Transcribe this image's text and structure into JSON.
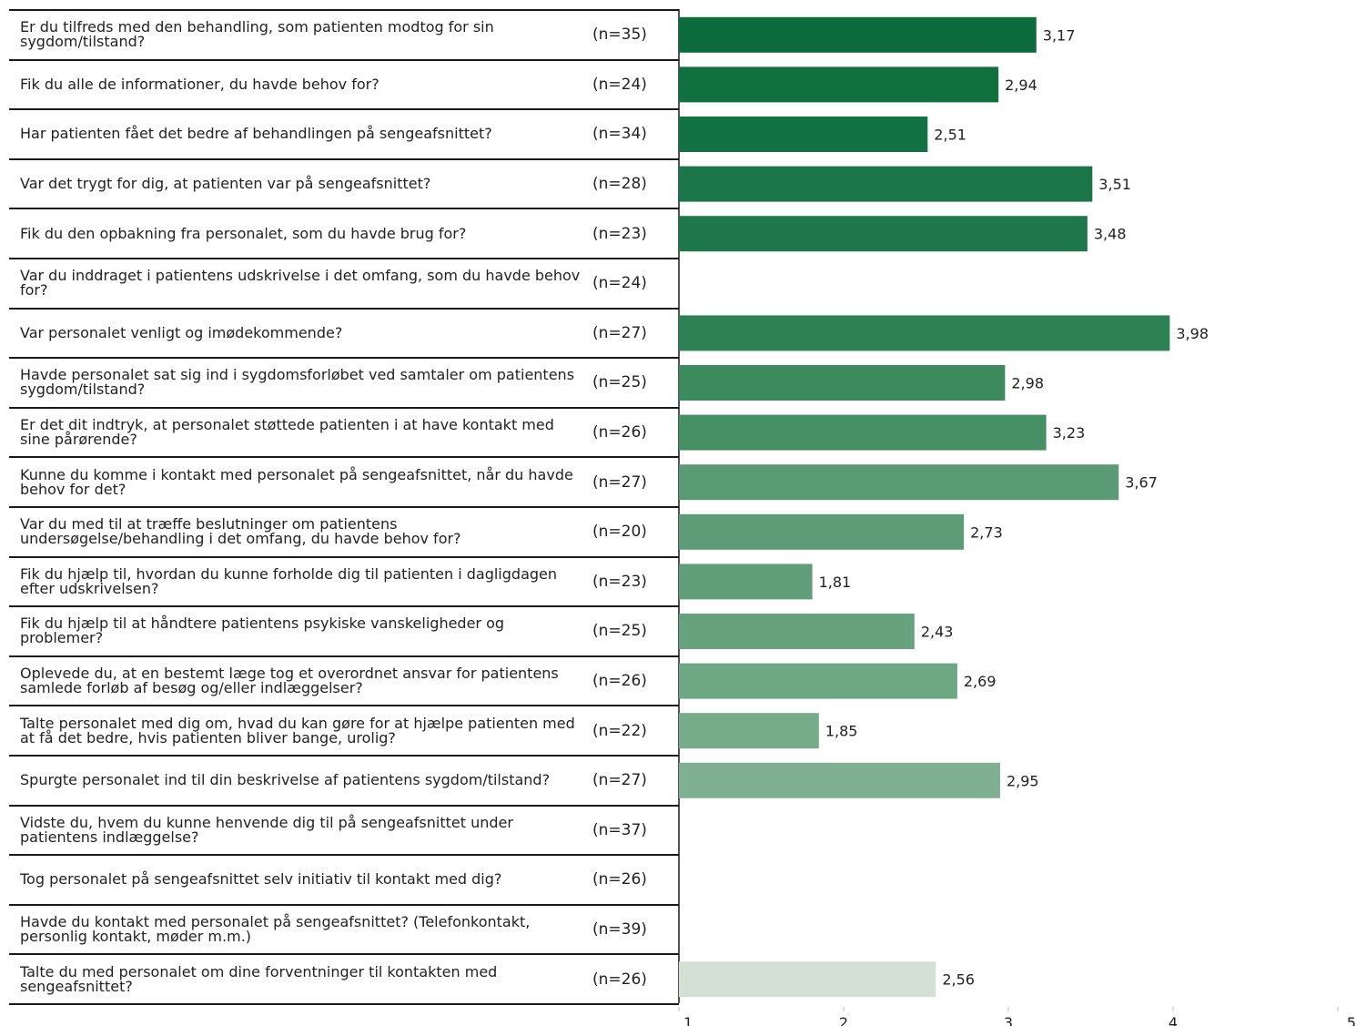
{
  "chart_data": {
    "type": "bar",
    "orientation": "horizontal",
    "xlim": [
      1,
      5
    ],
    "x_ticks": [
      "1",
      "2",
      "3",
      "4",
      "5"
    ],
    "grid": false,
    "rows": [
      {
        "question": "Er du tilfreds med den behandling, som patienten modtog for sin sygdom/tilstand?",
        "n": "(n=35)",
        "value": 3.17,
        "label": "3,17",
        "color": "#0c6b3c"
      },
      {
        "question": "Fik du alle de informationer, du havde behov for?",
        "n": "(n=24)",
        "value": 2.94,
        "label": "2,94",
        "color": "#107040"
      },
      {
        "question": "Har patienten fået det bedre af behandlingen på sengeafsnittet?",
        "n": "(n=34)",
        "value": 2.51,
        "label": "2,51",
        "color": "#137243"
      },
      {
        "question": "Var det trygt for dig, at patienten var på sengeafsnittet?",
        "n": "(n=28)",
        "value": 3.51,
        "label": "3,51",
        "color": "#1a7548"
      },
      {
        "question": "Fik du den opbakning fra personalet, som du havde brug for?",
        "n": "(n=23)",
        "value": 3.48,
        "label": "3,48",
        "color": "#1f784b"
      },
      {
        "question": "Var du inddraget i patientens udskrivelse i det omfang, som du havde behov for?",
        "n": "(n=24)",
        "value": null,
        "label": "",
        "color": "#1f784b"
      },
      {
        "question": "Var personalet venligt og imødekommende?",
        "n": "(n=27)",
        "value": 3.98,
        "label": "3,98",
        "color": "#2e8154"
      },
      {
        "question": "Havde personalet sat sig ind i sygdomsforløbet ved samtaler om patientens sygdom/tilstand?",
        "n": "(n=25)",
        "value": 2.98,
        "label": "2,98",
        "color": "#3c8a5e"
      },
      {
        "question": "Er det dit indtryk, at personalet støttede patienten i at have kontakt med sine pårørende?",
        "n": "(n=26)",
        "value": 3.23,
        "label": "3,23",
        "color": "#458f65"
      },
      {
        "question": "Kunne du komme i kontakt med personalet på sengeafsnittet, når du havde behov for det?",
        "n": "(n=27)",
        "value": 3.67,
        "label": "3,67",
        "color": "#5a9a75"
      },
      {
        "question": "Var du med til at træffe beslutninger om patientens undersøgelse/behandling i det omfang, du havde behov for?",
        "n": "(n=20)",
        "value": 2.73,
        "label": "2,73",
        "color": "#5d9c77"
      },
      {
        "question": "Fik du hjælp til, hvordan du kunne forholde dig til patienten i dagligdagen efter udskrivelsen?",
        "n": "(n=23)",
        "value": 1.81,
        "label": "1,81",
        "color": "#609e79"
      },
      {
        "question": "Fik du hjælp til at håndtere patientens psykiske vanskeligheder og problemer?",
        "n": "(n=25)",
        "value": 2.43,
        "label": "2,43",
        "color": "#66a27d"
      },
      {
        "question": "Oplevede du, at en bestemt læge tog et overordnet ansvar for patientens samlede forløb af besøg og/eller indlæggelser?",
        "n": "(n=26)",
        "value": 2.69,
        "label": "2,69",
        "color": "#6ea784"
      },
      {
        "question": "Talte personalet med dig om, hvad du kan gøre for at hjælpe patienten med at få det bedre, hvis patienten bliver bange, urolig?",
        "n": "(n=22)",
        "value": 1.85,
        "label": "1,85",
        "color": "#77ac8a"
      },
      {
        "question": "Spurgte personalet ind til din beskrivelse af patientens sygdom/tilstand?",
        "n": "(n=27)",
        "value": 2.95,
        "label": "2,95",
        "color": "#7eb091"
      },
      {
        "question": "Vidste du, hvem du kunne henvende dig til på sengeafsnittet under patientens indlæggelse?",
        "n": "(n=37)",
        "value": null,
        "label": "",
        "color": "#7eb091"
      },
      {
        "question": "Tog personalet på sengeafsnittet selv initiativ til kontakt med dig?",
        "n": "(n=26)",
        "value": null,
        "label": "",
        "color": "#7eb091"
      },
      {
        "question": "Havde du kontakt med personalet på sengeafsnittet? (Telefonkontakt, personlig kontakt, møder m.m.)",
        "n": "(n=39)",
        "value": null,
        "label": "",
        "color": "#7eb091"
      },
      {
        "question": "Talte du med personalet om dine forventninger til kontakten med sengeafsnittet?",
        "n": "(n=26)",
        "value": 2.56,
        "label": "2,56",
        "color": "#d4e0d3"
      }
    ]
  }
}
